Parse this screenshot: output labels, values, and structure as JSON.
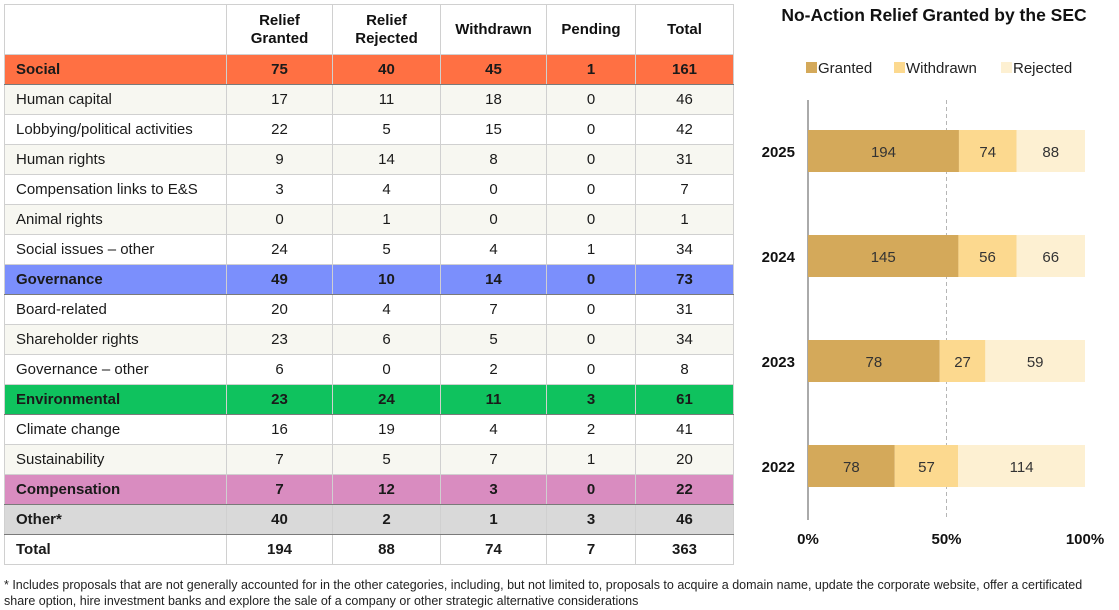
{
  "table": {
    "headers": [
      "",
      "Relief\nGranted",
      "Relief\nRejected",
      "Withdrawn",
      "Pending",
      "Total"
    ],
    "rows": [
      {
        "label": "Social",
        "values": [
          "75",
          "40",
          "45",
          "1",
          "161"
        ],
        "type": "category",
        "color": "#ff7043"
      },
      {
        "label": "Human capital",
        "values": [
          "17",
          "11",
          "18",
          "0",
          "46"
        ],
        "type": "item"
      },
      {
        "label": "Lobbying/political activities",
        "values": [
          "22",
          "5",
          "15",
          "0",
          "42"
        ],
        "type": "item"
      },
      {
        "label": "Human rights",
        "values": [
          "9",
          "14",
          "8",
          "0",
          "31"
        ],
        "type": "item"
      },
      {
        "label": "Compensation links to E&S",
        "values": [
          "3",
          "4",
          "0",
          "0",
          "7"
        ],
        "type": "item"
      },
      {
        "label": "Animal rights",
        "values": [
          "0",
          "1",
          "0",
          "0",
          "1"
        ],
        "type": "item"
      },
      {
        "label": "Social issues – other",
        "values": [
          "24",
          "5",
          "4",
          "1",
          "34"
        ],
        "type": "item"
      },
      {
        "label": "Governance",
        "values": [
          "49",
          "10",
          "14",
          "0",
          "73"
        ],
        "type": "category",
        "color": "#7b8ffc"
      },
      {
        "label": "Board-related",
        "values": [
          "20",
          "4",
          "7",
          "0",
          "31"
        ],
        "type": "item"
      },
      {
        "label": "Shareholder rights",
        "values": [
          "23",
          "6",
          "5",
          "0",
          "34"
        ],
        "type": "item"
      },
      {
        "label": "Governance – other",
        "values": [
          "6",
          "0",
          "2",
          "0",
          "8"
        ],
        "type": "item"
      },
      {
        "label": "Environmental",
        "values": [
          "23",
          "24",
          "11",
          "3",
          "61"
        ],
        "type": "category",
        "color": "#0fc25e"
      },
      {
        "label": "Climate change",
        "values": [
          "16",
          "19",
          "4",
          "2",
          "41"
        ],
        "type": "item"
      },
      {
        "label": "Sustainability",
        "values": [
          "7",
          "5",
          "7",
          "1",
          "20"
        ],
        "type": "item"
      },
      {
        "label": "Compensation",
        "values": [
          "7",
          "12",
          "3",
          "0",
          "22"
        ],
        "type": "category",
        "color": "#d98cc0"
      },
      {
        "label": "Other*",
        "values": [
          "40",
          "2",
          "1",
          "3",
          "46"
        ],
        "type": "category",
        "color": "#d9d9d9"
      },
      {
        "label": "Total",
        "values": [
          "194",
          "88",
          "74",
          "7",
          "363"
        ],
        "type": "total"
      }
    ]
  },
  "chart_data": {
    "type": "bar",
    "orientation": "horizontal",
    "stacked": "percent",
    "title": "No-Action Relief Granted by the SEC",
    "categories": [
      "2025",
      "2024",
      "2023",
      "2022"
    ],
    "series": [
      {
        "name": "Granted",
        "values": [
          194,
          145,
          78,
          78
        ],
        "color": "#d4a95a"
      },
      {
        "name": "Withdrawn",
        "values": [
          74,
          56,
          27,
          57
        ],
        "color": "#fcd98f"
      },
      {
        "name": "Rejected",
        "values": [
          88,
          66,
          59,
          114
        ],
        "color": "#fdf0d2"
      }
    ],
    "x_ticks": [
      "0%",
      "50%",
      "100%"
    ],
    "xlim": [
      0,
      100
    ],
    "legend": "top",
    "grid": "vertical dashed at 50%"
  },
  "footnote": "* Includes proposals that are not generally accounted for in the other categories, including, but not limited to, proposals to acquire a domain name, update the corporate website, offer a certificated share option, hire investment banks and explore the sale of a company or other strategic alternative considerations"
}
